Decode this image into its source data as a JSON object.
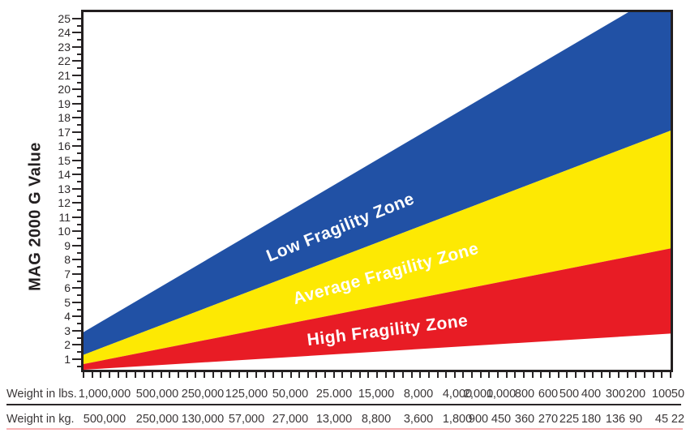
{
  "chart_data": {
    "type": "area",
    "ylabel": "MAG 2000 G Value",
    "ylim": [
      0.25,
      25.5
    ],
    "grid": false,
    "axis_color": "#231f20",
    "legend": "labels-inside-zones",
    "y_ticks": [
      "1",
      "2",
      "3",
      "4",
      "5",
      "6",
      "7",
      "8",
      "9",
      "10",
      "11",
      "12",
      "13",
      "14",
      "15",
      "16",
      "17",
      "18",
      "19",
      "20",
      "21",
      "22",
      "23",
      "24",
      "25"
    ],
    "x_axis_rows": [
      {
        "label": "Weight in lbs.",
        "values": [
          "1,000,000",
          "500,000",
          "250,000",
          "125,000",
          "50,000",
          "25.000",
          "15,000",
          "8,000",
          "4,000",
          "2,000",
          "1,000",
          "800",
          "600",
          "500",
          "400",
          "300",
          "200",
          "100",
          "50"
        ]
      },
      {
        "label": "Weight in kg.",
        "values": [
          "500,000",
          "250,000",
          "130,000",
          "57,000",
          "27,000",
          "13,000",
          "8,800",
          "3,600",
          "1,800",
          "900",
          "450",
          "360",
          "270",
          "225",
          "180",
          "136",
          "90",
          "45",
          "22"
        ]
      }
    ],
    "series": [
      {
        "name": "Low Fragility Zone",
        "color": "#2151a5",
        "text_color": "#ffffff",
        "g_left_edge": [
          1.3,
          2.9
        ],
        "g_right_edge": [
          17.1,
          27.2
        ]
      },
      {
        "name": "Average Fragility Zone",
        "color": "#fde903",
        "text_color": "#ffffff",
        "g_left_edge": [
          0.65,
          1.3
        ],
        "g_right_edge": [
          8.8,
          17.1
        ]
      },
      {
        "name": "High Fragility Zone",
        "color": "#e81c25",
        "text_color": "#ffffff",
        "g_left_edge": [
          0.25,
          0.65
        ],
        "g_right_edge": [
          2.8,
          8.8
        ]
      }
    ]
  }
}
